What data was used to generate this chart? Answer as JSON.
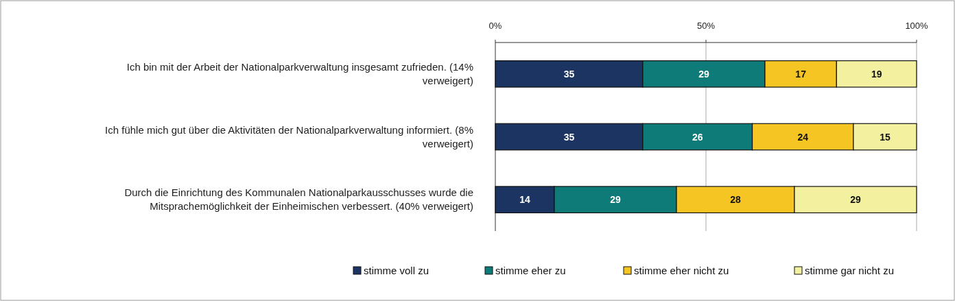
{
  "chart_data": {
    "type": "bar",
    "orientation": "horizontal",
    "stacked": true,
    "categories": [
      "Ich bin mit der Arbeit der Nationalparkverwaltung insgesamt zufrieden. (14% verweigert)",
      "Ich fühle mich gut über die Aktivitäten der Nationalparkverwaltung informiert. (8% verweigert)",
      "Durch die Einrichtung des Kommunalen Nationalparkausschusses wurde die Mitsprachemöglichkeit der Einheimischen verbessert. (40% verweigert)"
    ],
    "series": [
      {
        "name": "stimme voll zu",
        "color": "#1b3461",
        "values": [
          35,
          35,
          14
        ]
      },
      {
        "name": "stimme eher zu",
        "color": "#0e7b78",
        "values": [
          29,
          26,
          29
        ]
      },
      {
        "name": "stimme eher nicht zu",
        "color": "#f5c523",
        "values": [
          17,
          24,
          28
        ]
      },
      {
        "name": "stimme gar nicht zu",
        "color": "#f3f19f",
        "values": [
          19,
          15,
          29
        ]
      }
    ],
    "xlim": [
      0,
      100
    ],
    "xticks": [
      {
        "value": 0,
        "label": "0%"
      },
      {
        "value": 50,
        "label": "50%"
      },
      {
        "value": 100,
        "label": "100%"
      }
    ],
    "grid": "x",
    "legend": "bottom",
    "data_labels": true
  }
}
